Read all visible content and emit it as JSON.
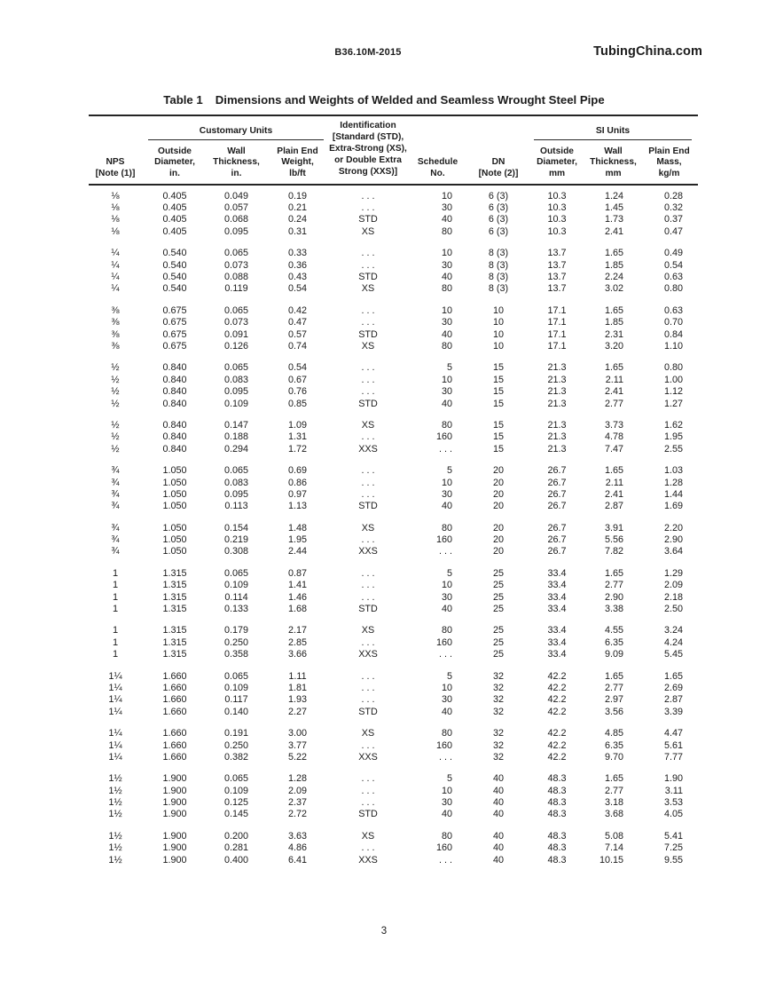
{
  "page": {
    "doc_code": "B36.10M-2015",
    "site": "TubingChina.com",
    "page_number": "3"
  },
  "table": {
    "title_label": "Table 1",
    "title_text": "Dimensions and Weights of Welded and Seamless Wrought Steel Pipe",
    "col_groups": {
      "customary": "Customary Units",
      "si": "SI Units"
    },
    "identification_header": [
      "Identification",
      "[Standard (STD),",
      "Extra-Strong (XS),",
      "or Double Extra",
      "Strong (XXS)]"
    ],
    "headers": {
      "nps": [
        "NPS",
        "[Note (1)]"
      ],
      "od_in": [
        "Outside",
        "Diameter,",
        "in."
      ],
      "wall_in": [
        "Wall",
        "Thickness,",
        "in."
      ],
      "weight": [
        "Plain End",
        "Weight,",
        "lb/ft"
      ],
      "ident": [],
      "schedule": [
        "Schedule",
        "No."
      ],
      "dn": [
        "DN",
        "[Note (2)]"
      ],
      "od_mm": [
        "Outside",
        "Diameter,",
        "mm"
      ],
      "wall_mm": [
        "Wall",
        "Thickness,",
        "mm"
      ],
      "mass": [
        "Plain End",
        "Mass,",
        "kg/m"
      ]
    },
    "column_order": [
      "nps",
      "od_in",
      "wall_in",
      "weight",
      "ident",
      "schedule",
      "dn",
      "od_mm",
      "wall_mm",
      "mass"
    ],
    "groups": [
      {
        "rows": [
          [
            "⅛",
            "0.405",
            "0.049",
            "0.19",
            ". . .",
            "10",
            "6 (3)",
            "10.3",
            "1.24",
            "0.28"
          ],
          [
            "⅛",
            "0.405",
            "0.057",
            "0.21",
            ". . .",
            "30",
            "6 (3)",
            "10.3",
            "1.45",
            "0.32"
          ],
          [
            "⅛",
            "0.405",
            "0.068",
            "0.24",
            "STD",
            "40",
            "6 (3)",
            "10.3",
            "1.73",
            "0.37"
          ],
          [
            "⅛",
            "0.405",
            "0.095",
            "0.31",
            "XS",
            "80",
            "6 (3)",
            "10.3",
            "2.41",
            "0.47"
          ]
        ]
      },
      {
        "rows": [
          [
            "¼",
            "0.540",
            "0.065",
            "0.33",
            ". . .",
            "10",
            "8 (3)",
            "13.7",
            "1.65",
            "0.49"
          ],
          [
            "¼",
            "0.540",
            "0.073",
            "0.36",
            ". . .",
            "30",
            "8 (3)",
            "13.7",
            "1.85",
            "0.54"
          ],
          [
            "¼",
            "0.540",
            "0.088",
            "0.43",
            "STD",
            "40",
            "8 (3)",
            "13.7",
            "2.24",
            "0.63"
          ],
          [
            "¼",
            "0.540",
            "0.119",
            "0.54",
            "XS",
            "80",
            "8 (3)",
            "13.7",
            "3.02",
            "0.80"
          ]
        ]
      },
      {
        "rows": [
          [
            "⅜",
            "0.675",
            "0.065",
            "0.42",
            ". . .",
            "10",
            "10",
            "17.1",
            "1.65",
            "0.63"
          ],
          [
            "⅜",
            "0.675",
            "0.073",
            "0.47",
            ". . .",
            "30",
            "10",
            "17.1",
            "1.85",
            "0.70"
          ],
          [
            "⅜",
            "0.675",
            "0.091",
            "0.57",
            "STD",
            "40",
            "10",
            "17.1",
            "2.31",
            "0.84"
          ],
          [
            "⅜",
            "0.675",
            "0.126",
            "0.74",
            "XS",
            "80",
            "10",
            "17.1",
            "3.20",
            "1.10"
          ]
        ]
      },
      {
        "rows": [
          [
            "½",
            "0.840",
            "0.065",
            "0.54",
            ". . .",
            "5",
            "15",
            "21.3",
            "1.65",
            "0.80"
          ],
          [
            "½",
            "0.840",
            "0.083",
            "0.67",
            ". . .",
            "10",
            "15",
            "21.3",
            "2.11",
            "1.00"
          ],
          [
            "½",
            "0.840",
            "0.095",
            "0.76",
            ". . .",
            "30",
            "15",
            "21.3",
            "2.41",
            "1.12"
          ],
          [
            "½",
            "0.840",
            "0.109",
            "0.85",
            "STD",
            "40",
            "15",
            "21.3",
            "2.77",
            "1.27"
          ]
        ]
      },
      {
        "rows": [
          [
            "½",
            "0.840",
            "0.147",
            "1.09",
            "XS",
            "80",
            "15",
            "21.3",
            "3.73",
            "1.62"
          ],
          [
            "½",
            "0.840",
            "0.188",
            "1.31",
            ". . .",
            "160",
            "15",
            "21.3",
            "4.78",
            "1.95"
          ],
          [
            "½",
            "0.840",
            "0.294",
            "1.72",
            "XXS",
            ". . .",
            "15",
            "21.3",
            "7.47",
            "2.55"
          ]
        ]
      },
      {
        "rows": [
          [
            "¾",
            "1.050",
            "0.065",
            "0.69",
            ". . .",
            "5",
            "20",
            "26.7",
            "1.65",
            "1.03"
          ],
          [
            "¾",
            "1.050",
            "0.083",
            "0.86",
            ". . .",
            "10",
            "20",
            "26.7",
            "2.11",
            "1.28"
          ],
          [
            "¾",
            "1.050",
            "0.095",
            "0.97",
            ". . .",
            "30",
            "20",
            "26.7",
            "2.41",
            "1.44"
          ],
          [
            "¾",
            "1.050",
            "0.113",
            "1.13",
            "STD",
            "40",
            "20",
            "26.7",
            "2.87",
            "1.69"
          ]
        ]
      },
      {
        "rows": [
          [
            "¾",
            "1.050",
            "0.154",
            "1.48",
            "XS",
            "80",
            "20",
            "26.7",
            "3.91",
            "2.20"
          ],
          [
            "¾",
            "1.050",
            "0.219",
            "1.95",
            ". . .",
            "160",
            "20",
            "26.7",
            "5.56",
            "2.90"
          ],
          [
            "¾",
            "1.050",
            "0.308",
            "2.44",
            "XXS",
            ". . .",
            "20",
            "26.7",
            "7.82",
            "3.64"
          ]
        ]
      },
      {
        "rows": [
          [
            "1",
            "1.315",
            "0.065",
            "0.87",
            ". . .",
            "5",
            "25",
            "33.4",
            "1.65",
            "1.29"
          ],
          [
            "1",
            "1.315",
            "0.109",
            "1.41",
            ". . .",
            "10",
            "25",
            "33.4",
            "2.77",
            "2.09"
          ],
          [
            "1",
            "1.315",
            "0.114",
            "1.46",
            ". . .",
            "30",
            "25",
            "33.4",
            "2.90",
            "2.18"
          ],
          [
            "1",
            "1.315",
            "0.133",
            "1.68",
            "STD",
            "40",
            "25",
            "33.4",
            "3.38",
            "2.50"
          ]
        ]
      },
      {
        "rows": [
          [
            "1",
            "1.315",
            "0.179",
            "2.17",
            "XS",
            "80",
            "25",
            "33.4",
            "4.55",
            "3.24"
          ],
          [
            "1",
            "1.315",
            "0.250",
            "2.85",
            ". . .",
            "160",
            "25",
            "33.4",
            "6.35",
            "4.24"
          ],
          [
            "1",
            "1.315",
            "0.358",
            "3.66",
            "XXS",
            ". . .",
            "25",
            "33.4",
            "9.09",
            "5.45"
          ]
        ]
      },
      {
        "rows": [
          [
            "1¼",
            "1.660",
            "0.065",
            "1.11",
            ". . .",
            "5",
            "32",
            "42.2",
            "1.65",
            "1.65"
          ],
          [
            "1¼",
            "1.660",
            "0.109",
            "1.81",
            ". . .",
            "10",
            "32",
            "42.2",
            "2.77",
            "2.69"
          ],
          [
            "1¼",
            "1.660",
            "0.117",
            "1.93",
            ". . .",
            "30",
            "32",
            "42.2",
            "2.97",
            "2.87"
          ],
          [
            "1¼",
            "1.660",
            "0.140",
            "2.27",
            "STD",
            "40",
            "32",
            "42.2",
            "3.56",
            "3.39"
          ]
        ]
      },
      {
        "rows": [
          [
            "1¼",
            "1.660",
            "0.191",
            "3.00",
            "XS",
            "80",
            "32",
            "42.2",
            "4.85",
            "4.47"
          ],
          [
            "1¼",
            "1.660",
            "0.250",
            "3.77",
            ". . .",
            "160",
            "32",
            "42.2",
            "6.35",
            "5.61"
          ],
          [
            "1¼",
            "1.660",
            "0.382",
            "5.22",
            "XXS",
            ". . .",
            "32",
            "42.2",
            "9.70",
            "7.77"
          ]
        ]
      },
      {
        "rows": [
          [
            "1½",
            "1.900",
            "0.065",
            "1.28",
            ". . .",
            "5",
            "40",
            "48.3",
            "1.65",
            "1.90"
          ],
          [
            "1½",
            "1.900",
            "0.109",
            "2.09",
            ". . .",
            "10",
            "40",
            "48.3",
            "2.77",
            "3.11"
          ],
          [
            "1½",
            "1.900",
            "0.125",
            "2.37",
            ". . .",
            "30",
            "40",
            "48.3",
            "3.18",
            "3.53"
          ],
          [
            "1½",
            "1.900",
            "0.145",
            "2.72",
            "STD",
            "40",
            "40",
            "48.3",
            "3.68",
            "4.05"
          ]
        ]
      },
      {
        "rows": [
          [
            "1½",
            "1.900",
            "0.200",
            "3.63",
            "XS",
            "80",
            "40",
            "48.3",
            "5.08",
            "5.41"
          ],
          [
            "1½",
            "1.900",
            "0.281",
            "4.86",
            ". . .",
            "160",
            "40",
            "48.3",
            "7.14",
            "7.25"
          ],
          [
            "1½",
            "1.900",
            "0.400",
            "6.41",
            "XXS",
            ". . .",
            "40",
            "48.3",
            "10.15",
            "9.55"
          ]
        ]
      }
    ]
  }
}
